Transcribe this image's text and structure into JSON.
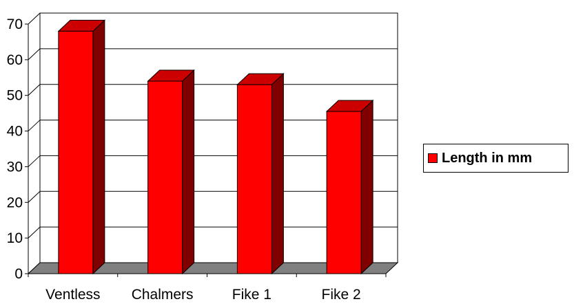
{
  "chart_data": {
    "type": "bar",
    "title": "",
    "xlabel": "",
    "ylabel": "",
    "categories": [
      "Ventless",
      "Chalmers",
      "Fike 1",
      "Fike 2"
    ],
    "series": [
      {
        "name": "Length in mm",
        "values": [
          68,
          54,
          53,
          45.5
        ]
      }
    ],
    "ylim": [
      0,
      70
    ],
    "yticks": [
      0,
      10,
      20,
      30,
      40,
      50,
      60,
      70
    ],
    "ytick_labels": [
      "0",
      "10",
      "20",
      "30",
      "40",
      "50",
      "60",
      "70"
    ],
    "grid": true,
    "three_d": true,
    "legend_position": "right",
    "colors": {
      "bar_front": "#ff0000",
      "bar_top": "#cc0000",
      "bar_side": "#800000",
      "floor": "#808080",
      "grid": "#000000"
    }
  }
}
